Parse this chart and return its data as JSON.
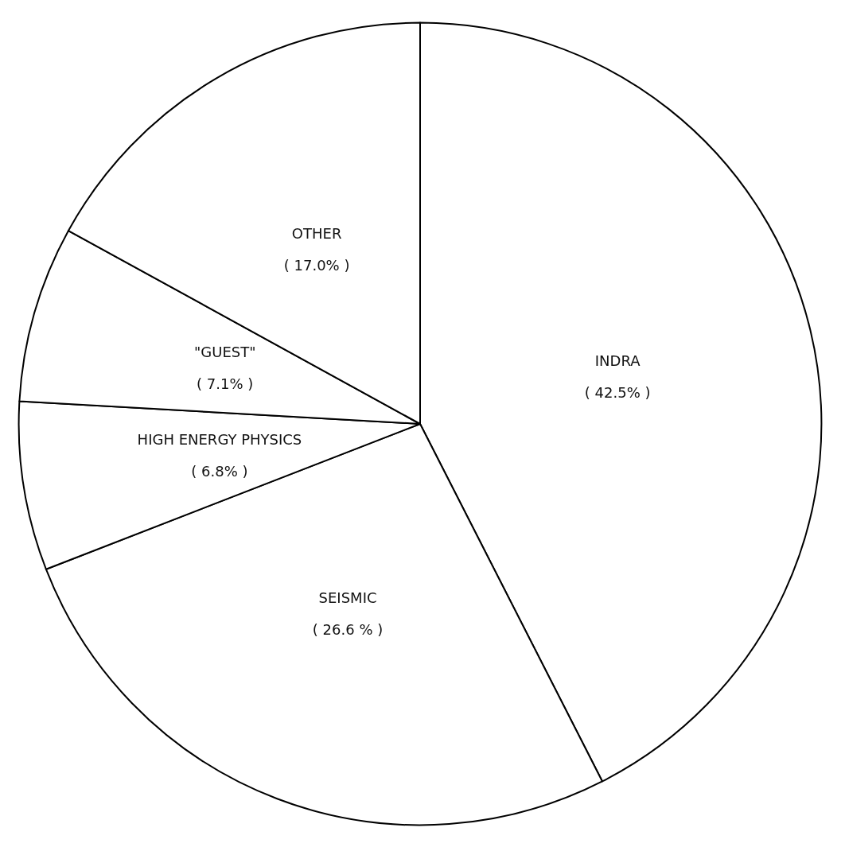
{
  "chart_data": {
    "type": "pie",
    "categories": [
      "INDRA",
      "SEISMIC",
      "HIGH ENERGY PHYSICS",
      "\"GUEST\"",
      "OTHER"
    ],
    "values": [
      42.5,
      26.6,
      6.8,
      7.1,
      17.0
    ],
    "value_labels": [
      "( 42.5% )",
      "( 26.6 % )",
      "( 6.8% )",
      "( 7.1% )",
      "( 17.0% )"
    ],
    "colors": [
      "#ffffff",
      "#ffffff",
      "#ffffff",
      "#ffffff",
      "#ffffff"
    ],
    "legend": false
  }
}
